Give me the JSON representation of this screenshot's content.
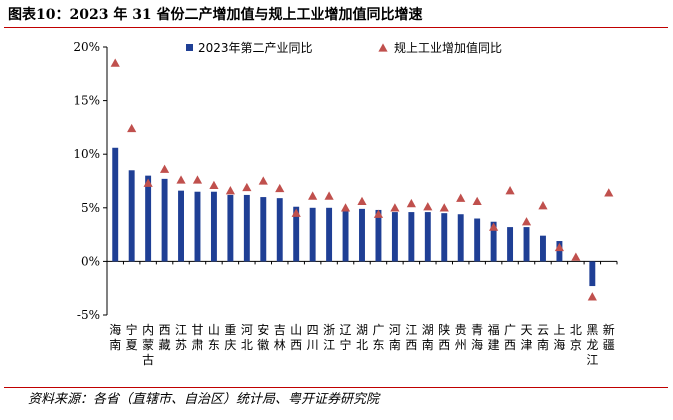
{
  "figure": {
    "title": "图表10：2023 年 31 省份二产增加值与规上工业增加值同比增速",
    "source": "资料来源：各省（直辖市、自治区）统计局、粤开证券研究院"
  },
  "chart_data": {
    "type": "bar",
    "categories": [
      "海南",
      "宁夏",
      "内蒙古",
      "西藏",
      "江苏",
      "甘肃",
      "山东",
      "重庆",
      "河北",
      "安徽",
      "吉林",
      "山西",
      "四川",
      "浙江",
      "辽宁",
      "湖北",
      "广东",
      "河南",
      "江西",
      "湖南",
      "陕西",
      "贵州",
      "青海",
      "福建",
      "广西",
      "天津",
      "云南",
      "上海",
      "北京",
      "黑龙江",
      "新疆"
    ],
    "series": [
      {
        "name": "2023年第二产业同比",
        "kind": "bar",
        "color": "#1f3f95",
        "values": [
          10.6,
          8.5,
          8.0,
          7.7,
          6.6,
          6.5,
          6.5,
          6.2,
          6.2,
          6.0,
          5.9,
          5.1,
          5.0,
          5.0,
          4.7,
          4.9,
          4.8,
          4.6,
          4.6,
          4.6,
          4.5,
          4.4,
          4.0,
          3.7,
          3.2,
          3.2,
          2.4,
          1.9,
          null,
          -2.3,
          null
        ]
      },
      {
        "name": "规上工业增加值同比",
        "kind": "marker",
        "color": "#c0504d",
        "values": [
          18.5,
          12.4,
          7.3,
          8.6,
          7.6,
          7.6,
          7.1,
          6.6,
          6.9,
          7.5,
          6.8,
          4.5,
          6.1,
          6.1,
          5.0,
          5.6,
          4.4,
          5.0,
          5.4,
          5.1,
          5.0,
          5.9,
          5.6,
          3.2,
          6.6,
          3.7,
          5.2,
          1.3,
          0.4,
          -3.3,
          6.4
        ]
      }
    ],
    "yticks": [
      "20%",
      "15%",
      "10%",
      "5%",
      "0%",
      "-5%"
    ],
    "ylim": [
      -5,
      20
    ],
    "legend_position": "top",
    "grid": false
  }
}
